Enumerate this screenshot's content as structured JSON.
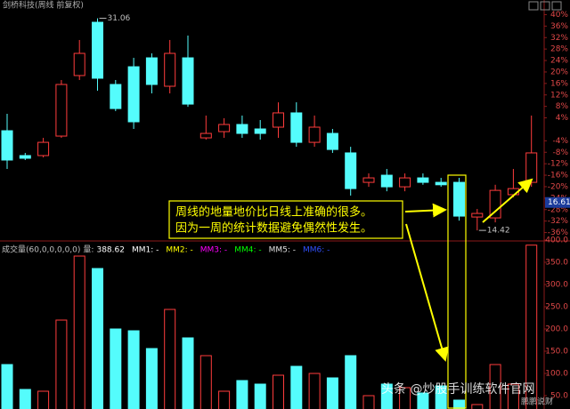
{
  "title": "剑桥科技(周线 前复权)",
  "chart_data": [
    {
      "type": "candlestick",
      "up_color": "#ff3c3c",
      "down_color": "#54fcfc",
      "open": [
        22.24,
        20.29,
        20.29,
        21.82,
        26.57,
        30.75,
        25.87,
        27.26,
        27.96,
        25.73,
        27.96,
        21.68,
        22.17,
        22.73,
        22.38,
        22.52,
        23.64,
        21.33,
        22.03,
        20.5,
        18.19,
        18.75,
        17.84,
        18.54,
        18.19,
        18.19,
        15.47,
        15.4,
        17.22,
        18.19
      ],
      "high": [
        23.57,
        20.5,
        21.68,
        26.22,
        29.36,
        31.06,
        26.22,
        27.96,
        28.31,
        29.36,
        29.71,
        23.43,
        23.22,
        23.43,
        23.08,
        24.47,
        24.47,
        23.43,
        22.38,
        20.98,
        18.89,
        19.24,
        18.89,
        18.89,
        18.54,
        18.54,
        16.1,
        18.0,
        19.24,
        23.43
      ],
      "low": [
        19.24,
        19.94,
        20.15,
        21.68,
        26.22,
        25.38,
        23.78,
        22.38,
        25.17,
        25.17,
        24.12,
        21.54,
        21.68,
        21.68,
        21.54,
        21.68,
        20.98,
        20.98,
        20.5,
        17.15,
        17.84,
        17.49,
        17.49,
        18.0,
        17.84,
        15.19,
        14.42,
        15.05,
        17.01,
        17.84
      ],
      "close": [
        19.94,
        20.08,
        21.33,
        25.87,
        28.31,
        26.36,
        23.98,
        22.94,
        25.87,
        28.31,
        24.33,
        22.03,
        22.73,
        22.03,
        22.03,
        23.64,
        21.33,
        22.52,
        20.77,
        17.7,
        18.54,
        17.84,
        18.54,
        18.19,
        18.0,
        15.54,
        15.75,
        17.56,
        17.7,
        20.5
      ],
      "ylim": [
        13.8,
        31.8
      ],
      "y2lim": [
        -38,
        42
      ],
      "y2ticks": [
        {
          "value": 40,
          "label": "40%"
        },
        {
          "value": 36,
          "label": "36%"
        },
        {
          "value": 32,
          "label": "32%"
        },
        {
          "value": 28,
          "label": "28%"
        },
        {
          "value": 24,
          "label": "24%"
        },
        {
          "value": 20,
          "label": "20%"
        },
        {
          "value": 16,
          "label": "16%"
        },
        {
          "value": 12,
          "label": "12%"
        },
        {
          "value": 8,
          "label": "8%"
        },
        {
          "value": 4,
          "label": "4%"
        },
        {
          "value": -4,
          "label": "-4%"
        },
        {
          "value": -8,
          "label": "-8%"
        },
        {
          "value": -12,
          "label": "-12%"
        },
        {
          "value": -16,
          "label": "-16%"
        },
        {
          "value": -20,
          "label": "-20%"
        },
        {
          "value": -24,
          "label": "-24%"
        },
        {
          "value": -28,
          "label": "-28%"
        },
        {
          "value": -32,
          "label": "-32%"
        },
        {
          "value": -36,
          "label": "-36%"
        }
      ],
      "price_label": 16.61,
      "annotations": [
        "周线的地量地价比日线上准确的很多。",
        "因为一周的统计数据避免偶然性发生。"
      ]
    },
    {
      "type": "volume",
      "header": [
        {
          "text": "成交量(60,0,0,0,0,0)",
          "color": "#c0c0c0"
        },
        {
          "text": "量:",
          "color": "#c0c0c0"
        }
      ],
      "legend": [
        {
          "text": "MM1: -",
          "color": "#ffffff"
        },
        {
          "text": "MM2: -",
          "color": "#ffff00"
        },
        {
          "text": "MM3: -",
          "color": "#ff00ff"
        },
        {
          "text": "MM4: -",
          "color": "#00ff00"
        },
        {
          "text": "MM5: -",
          "color": "#e0e0e0"
        },
        {
          "text": "MM6: -",
          "color": "#3050ff"
        }
      ],
      "values": [
        120,
        64,
        60,
        220,
        364,
        336,
        200,
        196,
        156,
        244,
        180,
        140,
        60,
        84,
        76,
        96,
        116,
        100,
        90,
        140,
        50,
        76,
        68,
        56,
        72,
        40,
        30,
        120,
        76,
        388.62
      ],
      "ylim": [
        20,
        420
      ],
      "yticks": [
        {
          "value": 400,
          "label": "400.0"
        },
        {
          "value": 350,
          "label": "350.0"
        },
        {
          "value": 300,
          "label": "300.0"
        },
        {
          "value": 250,
          "label": "250.0"
        },
        {
          "value": 200,
          "label": "200.0"
        },
        {
          "value": 150,
          "label": "150.0"
        },
        {
          "value": 100,
          "label": "100.0"
        },
        {
          "value": 50,
          "label": "50.0"
        }
      ]
    }
  ],
  "watermark": [
    "头条 @炒股手训练软件官网",
    "鹏鹏说财"
  ]
}
